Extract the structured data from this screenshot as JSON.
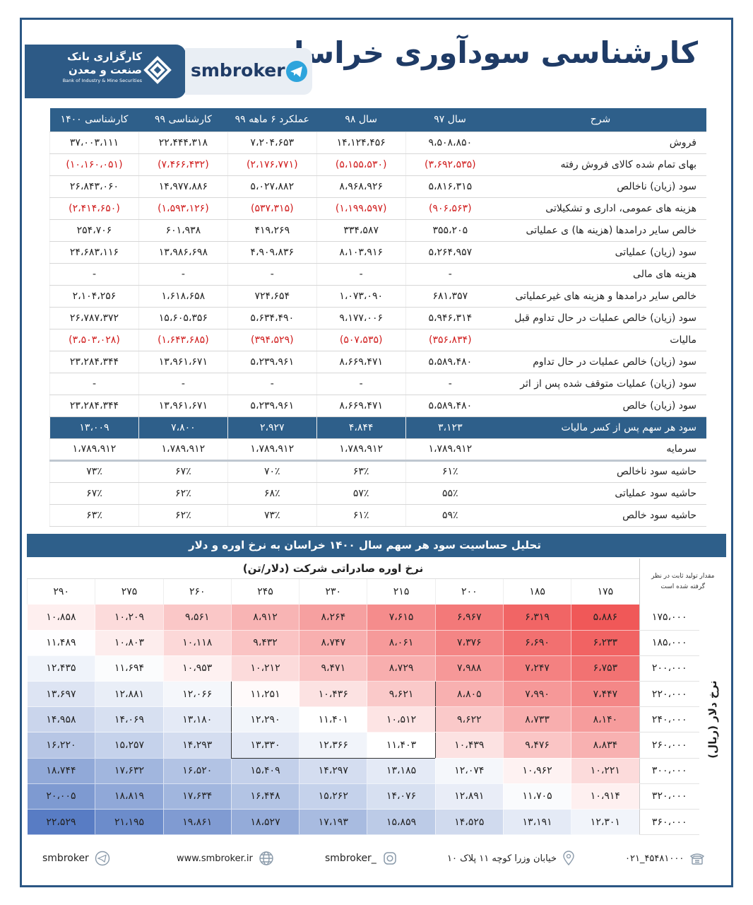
{
  "header": {
    "title": "کارشناسی سودآوری خراسان",
    "brand": "smbroker",
    "logo_fa": [
      "کارگزاری بانک",
      "صنعت و معدن"
    ],
    "logo_en": "Bank of Industry & Mine Securities"
  },
  "table": {
    "columns": [
      "شرح",
      "سال ۹۷",
      "سال ۹۸",
      "عملکرد ۶ ماهه ۹۹",
      "کارشناسی ۹۹",
      "کارشناسی ۱۴۰۰"
    ],
    "rows": [
      [
        "فروش",
        "۹،۵۰۸،۸۵۰",
        "۱۴،۱۲۴،۴۵۶",
        "۷،۲۰۴،۶۵۳",
        "۲۲،۴۴۴،۳۱۸",
        "۳۷،۰۰۳،۱۱۱"
      ],
      [
        "بهای تمام شده کالای فروش رفته",
        "(۳،۶۹۲،۵۳۵)",
        "(۵،۱۵۵،۵۳۰)",
        "(۲،۱۷۶،۷۷۱)",
        "(۷،۴۶۶،۴۳۲)",
        "(۱۰،۱۶۰،۰۵۱)"
      ],
      [
        "سود (زیان) ناخالص",
        "۵،۸۱۶،۳۱۵",
        "۸،۹۶۸،۹۲۶",
        "۵،۰۲۷،۸۸۲",
        "۱۴،۹۷۷،۸۸۶",
        "۲۶،۸۴۳،۰۶۰"
      ],
      [
        "هزینه های عمومی، اداری و تشکیلاتی",
        "(۹۰۶،۵۶۳)",
        "(۱،۱۹۹،۵۹۷)",
        "(۵۳۷،۳۱۵)",
        "(۱،۵۹۳،۱۲۶)",
        "(۲،۴۱۴،۶۵۰)"
      ],
      [
        "خالص سایر درامدها (هزینه ها) ی عملیاتی",
        "۳۵۵،۲۰۵",
        "۳۳۴،۵۸۷",
        "۴۱۹،۲۶۹",
        "۶۰۱،۹۳۸",
        "۲۵۴،۷۰۶"
      ],
      [
        "سود (زیان) عملیاتی",
        "۵،۲۶۴،۹۵۷",
        "۸،۱۰۳،۹۱۶",
        "۴،۹۰۹،۸۳۶",
        "۱۳،۹۸۶،۶۹۸",
        "۲۴،۶۸۳،۱۱۶"
      ],
      [
        "هزینه های مالی",
        "-",
        "-",
        "-",
        "-",
        "-"
      ],
      [
        "خالص سایر درامدها و هزینه های غیرعملیاتی",
        "۶۸۱،۳۵۷",
        "۱،۰۷۳،۰۹۰",
        "۷۲۴،۶۵۴",
        "۱،۶۱۸،۶۵۸",
        "۲،۱۰۴،۲۵۶"
      ],
      [
        "سود (زیان) خالص عملیات در حال تداوم قبل",
        "۵،۹۴۶،۳۱۴",
        "۹،۱۷۷،۰۰۶",
        "۵،۶۳۴،۴۹۰",
        "۱۵،۶۰۵،۳۵۶",
        "۲۶،۷۸۷،۳۷۲"
      ],
      [
        "مالیات",
        "(۳۵۶،۸۳۴)",
        "(۵۰۷،۵۳۵)",
        "(۳۹۴،۵۲۹)",
        "(۱،۶۴۳،۶۸۵)",
        "(۳،۵۰۳،۰۲۸)"
      ],
      [
        "سود (زیان) خالص عملیات در حال تداوم",
        "۵،۵۸۹،۴۸۰",
        "۸،۶۶۹،۴۷۱",
        "۵،۲۳۹،۹۶۱",
        "۱۳،۹۶۱،۶۷۱",
        "۲۳،۲۸۴،۳۴۴"
      ],
      [
        "سود (زیان) عملیات متوقف شده پس از اثر",
        "-",
        "-",
        "-",
        "-",
        "-"
      ],
      [
        "سود (زیان) خالص",
        "۵،۵۸۹،۴۸۰",
        "۸،۶۶۹،۴۷۱",
        "۵،۲۳۹،۹۶۱",
        "۱۳،۹۶۱،۶۷۱",
        "۲۳،۲۸۴،۳۴۴"
      ],
      [
        "سود هر سهم پس از کسر مالیات",
        "۳،۱۲۳",
        "۴،۸۴۴",
        "۲،۹۲۷",
        "۷،۸۰۰",
        "۱۳،۰۰۹"
      ],
      [
        "سرمایه",
        "۱،۷۸۹،۹۱۲",
        "۱،۷۸۹،۹۱۲",
        "۱،۷۸۹،۹۱۲",
        "۱،۷۸۹،۹۱۲",
        "۱،۷۸۹،۹۱۲"
      ],
      [
        "حاشیه سود ناخالص",
        "۶۱٪",
        "۶۳٪",
        "۷۰٪",
        "۶۷٪",
        "۷۳٪"
      ],
      [
        "حاشیه سود عملیاتی",
        "۵۵٪",
        "۵۷٪",
        "۶۸٪",
        "۶۲٪",
        "۶۷٪"
      ],
      [
        "حاشیه سود خالص",
        "۵۹٪",
        "۶۱٪",
        "۷۳٪",
        "۶۲٪",
        "۶۳٪"
      ]
    ]
  },
  "sensitivity": {
    "title": "تحلیل حساسیت سود هر سهم سال ۱۴۰۰ خراسان به نرخ اوره و دلار",
    "column_axis": "نرخ اوره صادراتی شرکت (دلار/تن)",
    "corner_note": "مقدار تولید ثابت در نظر گرفته شده است",
    "row_axis": "نرخ دلار (ریال)",
    "columns": [
      "۱۷۵",
      "۱۸۵",
      "۲۰۰",
      "۲۱۵",
      "۲۳۰",
      "۲۴۵",
      "۲۶۰",
      "۲۷۵",
      "۲۹۰"
    ],
    "rows": [
      {
        "label": "۱۷۵،۰۰۰",
        "values": [
          "۵،۸۸۶",
          "۶،۳۱۹",
          "۶،۹۶۷",
          "۷،۶۱۵",
          "۸،۲۶۴",
          "۸،۹۱۲",
          "۹،۵۶۱",
          "۱۰،۲۰۹",
          "۱۰،۸۵۸"
        ]
      },
      {
        "label": "۱۸۵،۰۰۰",
        "values": [
          "۶،۲۳۳",
          "۶،۶۹۰",
          "۷،۳۷۶",
          "۸،۰۶۱",
          "۸،۷۴۷",
          "۹،۴۳۲",
          "۱۰،۱۱۸",
          "۱۰،۸۰۳",
          "۱۱،۴۸۹"
        ]
      },
      {
        "label": "۲۰۰،۰۰۰",
        "values": [
          "۶،۷۵۳",
          "۷،۲۴۷",
          "۷،۹۸۸",
          "۸،۷۲۹",
          "۹،۴۷۱",
          "۱۰،۲۱۲",
          "۱۰،۹۵۳",
          "۱۱،۶۹۴",
          "۱۲،۴۳۵"
        ]
      },
      {
        "label": "۲۲۰،۰۰۰",
        "values": [
          "۷،۴۴۷",
          "۷،۹۹۰",
          "۸،۸۰۵",
          "۹،۶۲۱",
          "۱۰،۴۳۶",
          "۱۱،۲۵۱",
          "۱۲،۰۶۶",
          "۱۲،۸۸۱",
          "۱۳،۶۹۷"
        ]
      },
      {
        "label": "۲۴۰،۰۰۰",
        "values": [
          "۸،۱۴۰",
          "۸،۷۳۳",
          "۹،۶۲۲",
          "۱۰،۵۱۲",
          "۱۱،۴۰۱",
          "۱۲،۲۹۰",
          "۱۳،۱۸۰",
          "۱۴،۰۶۹",
          "۱۴،۹۵۸"
        ]
      },
      {
        "label": "۲۶۰،۰۰۰",
        "values": [
          "۸،۸۳۴",
          "۹،۴۷۶",
          "۱۰،۴۳۹",
          "۱۱،۴۰۳",
          "۱۲،۳۶۶",
          "۱۳،۳۳۰",
          "۱۴،۲۹۳",
          "۱۵،۲۵۷",
          "۱۶،۲۲۰"
        ]
      },
      {
        "label": "۳۰۰،۰۰۰",
        "values": [
          "۱۰،۲۲۱",
          "۱۰،۹۶۲",
          "۱۲،۰۷۴",
          "۱۳،۱۸۵",
          "۱۴،۲۹۷",
          "۱۵،۴۰۹",
          "۱۶،۵۲۰",
          "۱۷،۶۳۲",
          "۱۸،۷۴۴"
        ]
      },
      {
        "label": "۳۲۰،۰۰۰",
        "values": [
          "۱۰،۹۱۴",
          "۱۱،۷۰۵",
          "۱۲،۸۹۱",
          "۱۴،۰۷۶",
          "۱۵،۲۶۲",
          "۱۶،۴۴۸",
          "۱۷،۶۳۴",
          "۱۸،۸۱۹",
          "۲۰،۰۰۵"
        ]
      },
      {
        "label": "۳۶۰،۰۰۰",
        "values": [
          "۱۲،۳۰۱",
          "۱۳،۱۹۱",
          "۱۴،۵۲۵",
          "۱۵،۸۵۹",
          "۱۷،۱۹۳",
          "۱۸،۵۲۷",
          "۱۹،۸۶۱",
          "۲۱،۱۹۵",
          "۲۲،۵۲۹"
        ]
      }
    ]
  },
  "footer": {
    "telegram": "smbroker",
    "website": "www.smbroker.ir",
    "instagram": "smbroker_",
    "address": "خیابان وزرا کوچه ۱۱ پلاک ۱۰",
    "phone": "۰۲۱_۴۵۴۸۱۰۰۰"
  }
}
